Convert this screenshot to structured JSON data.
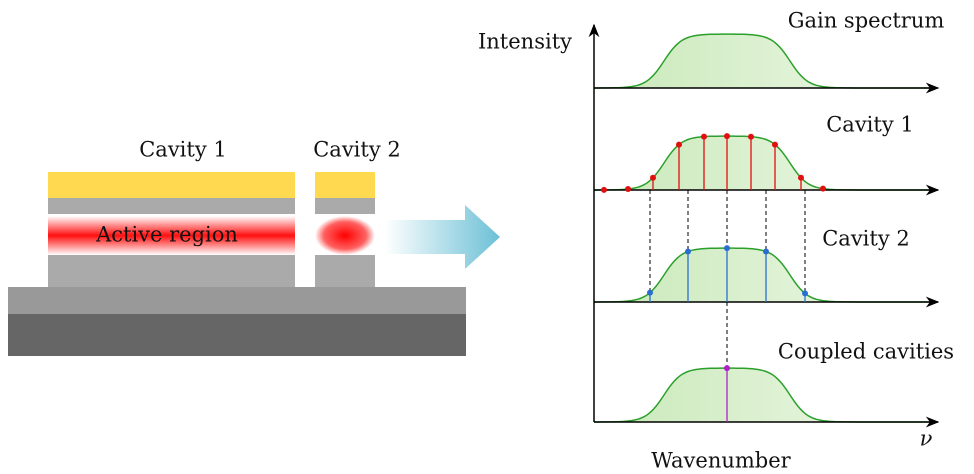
{
  "device": {
    "cavity_1": "Cavity 1",
    "cavity_2": "Cavity 2",
    "active_region": "Active region"
  },
  "plot": {
    "y_axis_label": "Intensity",
    "x_axis_label": "Wavenumber",
    "x_axis_symbol": "ν",
    "panels": [
      "Gain spectrum",
      "Cavity 1",
      "Cavity 2",
      "Coupled cavities"
    ]
  }
}
